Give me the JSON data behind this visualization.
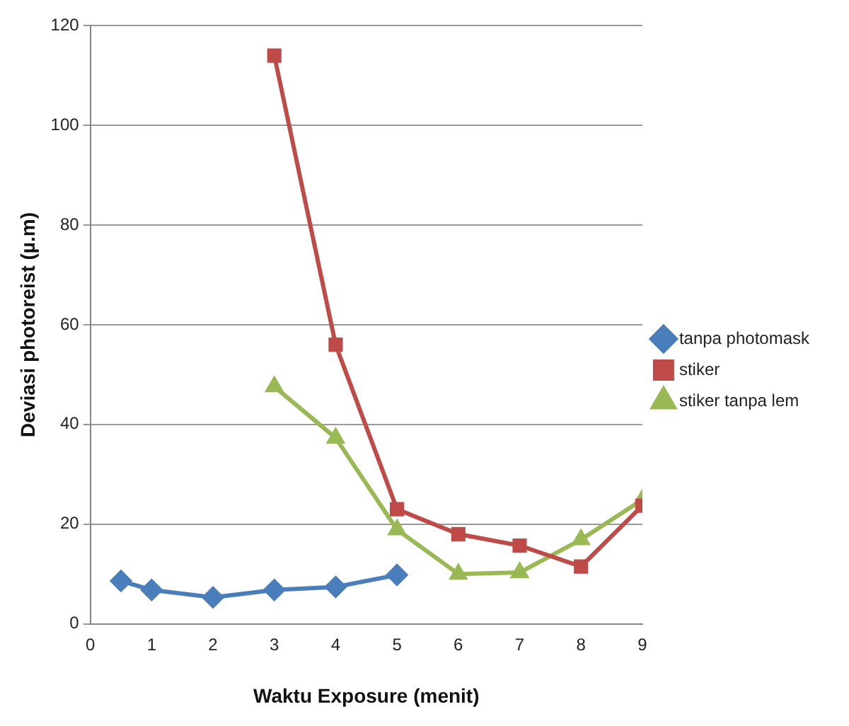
{
  "chart_data": {
    "type": "line",
    "xlabel": "Waktu Exposure (menit)",
    "ylabel": "Deviasi photoreist (µ.m)",
    "xlim": [
      0,
      9
    ],
    "xticks": [
      0,
      1,
      2,
      3,
      4,
      5,
      6,
      7,
      8,
      9
    ],
    "ylim": [
      0,
      120
    ],
    "yticks": [
      0,
      20,
      40,
      60,
      80,
      100,
      120
    ],
    "grid": "y",
    "legend": "right",
    "series": [
      {
        "name": "tanpa photomask",
        "color": "#4a7ebb",
        "marker": "diamond",
        "x": [
          0.5,
          1,
          2,
          3,
          4,
          5
        ],
        "values": [
          8.6,
          6.8,
          5.3,
          6.8,
          7.4,
          9.8
        ]
      },
      {
        "name": "stiker",
        "color": "#be4b48",
        "marker": "square",
        "x": [
          3,
          4,
          5,
          6,
          7,
          8,
          9
        ],
        "values": [
          114,
          56,
          23,
          18,
          15.7,
          11.5,
          23.7
        ]
      },
      {
        "name": "stiker tanpa lem",
        "color": "#98b954",
        "marker": "triangle",
        "x": [
          3,
          4,
          5,
          6,
          7,
          8,
          9
        ],
        "values": [
          47.6,
          37.3,
          18.9,
          10,
          10.3,
          16.9,
          24.9
        ]
      }
    ]
  }
}
